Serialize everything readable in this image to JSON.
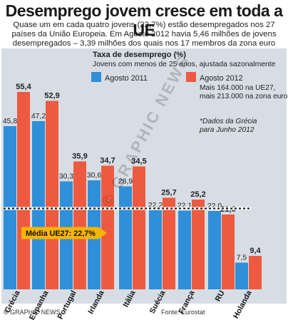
{
  "header": {
    "title": "Desemprego jovem cresce em toda a UE",
    "subtitle_lines": [
      "Quase um em cada quatro jovens (22,7%) estão desempregados nos 27",
      "países da União Europeia. Em Agosto 2012 havia 5,46 milhões de jovens",
      "desempregados – 3,39 milhões dos quais nos 17 membros da zona euro"
    ]
  },
  "chart_data": {
    "type": "bar",
    "title": "Taxa de desemprego (%)",
    "subtitle": "Jovens com menos de 25 anos, ajustada sazonalmente",
    "categories": [
      "Grécia",
      "Espanha",
      "Portugal",
      "Irlanda",
      "Itália",
      "Suécia",
      "França",
      "RU",
      "Holanda"
    ],
    "series": [
      {
        "name": "Agosto 2011",
        "color": "#2f8fd8",
        "values": [
          45.8,
          47.2,
          30.3,
          30.6,
          28.9,
          22.2,
          22.1,
          22.0,
          7.5
        ],
        "labels": [
          "45,8",
          "47,2",
          "30,3",
          "30,6",
          "28,9",
          "22,2",
          "22,1",
          "22,0",
          "7,5"
        ]
      },
      {
        "name": "Agosto 2012",
        "color": "#ee5a40",
        "values": [
          55.4,
          52.9,
          35.9,
          34.7,
          34.5,
          25.7,
          25.2,
          21.0,
          9.4
        ],
        "labels": [
          "55,4",
          "52,9",
          "35,9",
          "34,7",
          "34,5",
          "25,7",
          "25,2",
          "21,0",
          "9,4"
        ]
      }
    ],
    "reference_line": {
      "value": 22.7,
      "label": "Média UE27: 22,7%",
      "color": "#f7b500"
    },
    "legend_note_lines": [
      "Mais 164.000 na UE27,",
      "mais 213.000 na zona euro"
    ],
    "footnote_lines": [
      "*Dados da Grécia",
      "para Junho 2012"
    ],
    "ylim": [
      0,
      60
    ]
  },
  "footer": {
    "credit": "© GRAPHIC NEWS",
    "source": "Fonte: Eurostat"
  },
  "watermark": "© GRAPHIC NEWS"
}
